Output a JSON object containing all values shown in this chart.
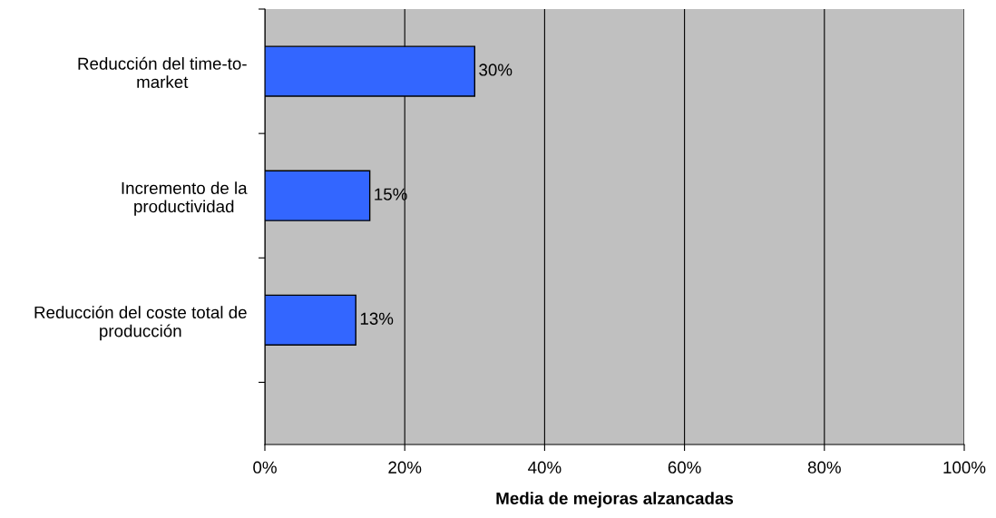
{
  "chart_data": {
    "type": "bar",
    "orientation": "horizontal",
    "xlabel": "Media de mejoras alzancadas",
    "categories": [
      "Reducción del time-to-market",
      "Incremento de la productividad",
      "Reducción del coste total de producción"
    ],
    "values": [
      30,
      15,
      13
    ],
    "color": "#3366ff",
    "value_labels": [
      "30%",
      "15%",
      "13%"
    ],
    "xlim": [
      0,
      100
    ],
    "xticks": [
      {
        "value": 0,
        "label": "0%"
      },
      {
        "value": 20,
        "label": "20%"
      },
      {
        "value": 40,
        "label": "40%"
      },
      {
        "value": 60,
        "label": "60%"
      },
      {
        "value": 80,
        "label": "80%"
      },
      {
        "value": 100,
        "label": "100%"
      }
    ],
    "grid": "x"
  }
}
